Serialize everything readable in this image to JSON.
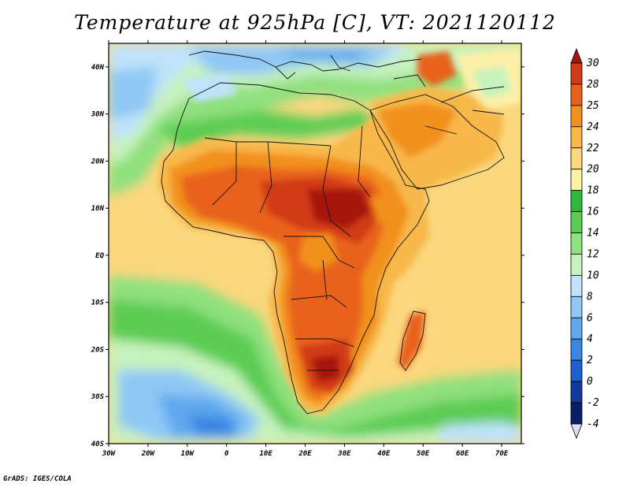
{
  "title": "Temperature at 925hPa [C], VT: 2021120112",
  "credit": "GrADS: IGES/COLA",
  "map": {
    "type": "filled-contour-map",
    "lon_range": [
      -30,
      75
    ],
    "lat_range": [
      -40,
      45
    ],
    "lon_ticks": [
      "30W",
      "20W",
      "10W",
      "0",
      "10E",
      "20E",
      "30E",
      "40E",
      "50E",
      "60E",
      "70E"
    ],
    "lat_ticks": [
      "40N",
      "30N",
      "20N",
      "10N",
      "EQ",
      "10S",
      "20S",
      "30S",
      "40S"
    ]
  },
  "colorbar": {
    "labels": [
      "30",
      "28",
      "25",
      "24",
      "22",
      "20",
      "18",
      "16",
      "14",
      "12",
      "10",
      "8",
      "6",
      "4",
      "2",
      "0",
      "-2",
      "-4"
    ],
    "colors": [
      "#a6150b",
      "#d13a16",
      "#e8621c",
      "#f2901f",
      "#f7b849",
      "#fbd77e",
      "#fcf0a6",
      "#2fb83f",
      "#5ccc52",
      "#8fe07e",
      "#c6f2bd",
      "#bfe3fb",
      "#8fc8f5",
      "#5ea9ee",
      "#3a86e3",
      "#1f5fd0",
      "#123a9c",
      "#0a1f66",
      "#dcdcf5"
    ]
  }
}
